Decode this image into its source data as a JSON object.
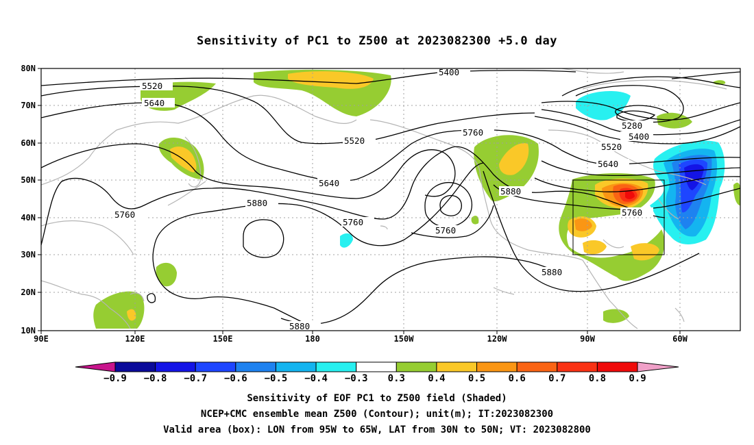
{
  "title": "Sensitivity of PC1 to Z500 at 2023082300 +5.0 day",
  "lat_labels": [
    "80N",
    "70N",
    "60N",
    "50N",
    "40N",
    "30N",
    "20N",
    "10N"
  ],
  "lon_labels": [
    "90E",
    "120E",
    "150E",
    "180",
    "150W",
    "120W",
    "90W",
    "60W"
  ],
  "contour_labels": {
    "c5400": "5400",
    "c5520a": "5520",
    "c5640a": "5640",
    "c5520b": "5520",
    "c5760a": "5760",
    "c5280": "5280",
    "c5400b": "5400",
    "c5520c": "5520",
    "c5640b": "5640",
    "c5640c": "5640",
    "c5760b": "5760",
    "c5880a": "5880",
    "c5880b": "5880",
    "c5760c": "5760",
    "c5760d": "5760",
    "c5760e": "5760",
    "c5880c": "5880",
    "c5880d": "5880"
  },
  "colorbar": {
    "labels": [
      "−0.9",
      "−0.8",
      "−0.7",
      "−0.6",
      "−0.5",
      "−0.4",
      "−0.3",
      "0.3",
      "0.4",
      "0.5",
      "0.6",
      "0.7",
      "0.8",
      "0.9"
    ],
    "colors": [
      "#0a0a9a",
      "#1414e6",
      "#1e46ff",
      "#1e82f0",
      "#14b4f0",
      "#28f0f0",
      "#ffffff",
      "#96cd32",
      "#fac828",
      "#fa9614",
      "#fa6414",
      "#fa3214",
      "#f00a0a"
    ],
    "under_color": "#c8148c",
    "over_color": "#f0a0c8"
  },
  "box": {
    "lon_from": "95W",
    "lon_to": "65W",
    "lat_from": "30N",
    "lat_to": "50N"
  },
  "captions": {
    "line1": "Sensitivity of EOF PC1 to Z500 field (Shaded)",
    "line2": "NCEP+CMC ensemble mean Z500 (Contour); unit(m); IT:2023082300",
    "line3": "Valid area (box): LON from 95W to 65W, LAT from 30N to 50N; VT: 2023082800"
  },
  "colors": {
    "coastline": "#b4b4b4",
    "grid": "#a0a0a0",
    "contour": "#000000"
  }
}
